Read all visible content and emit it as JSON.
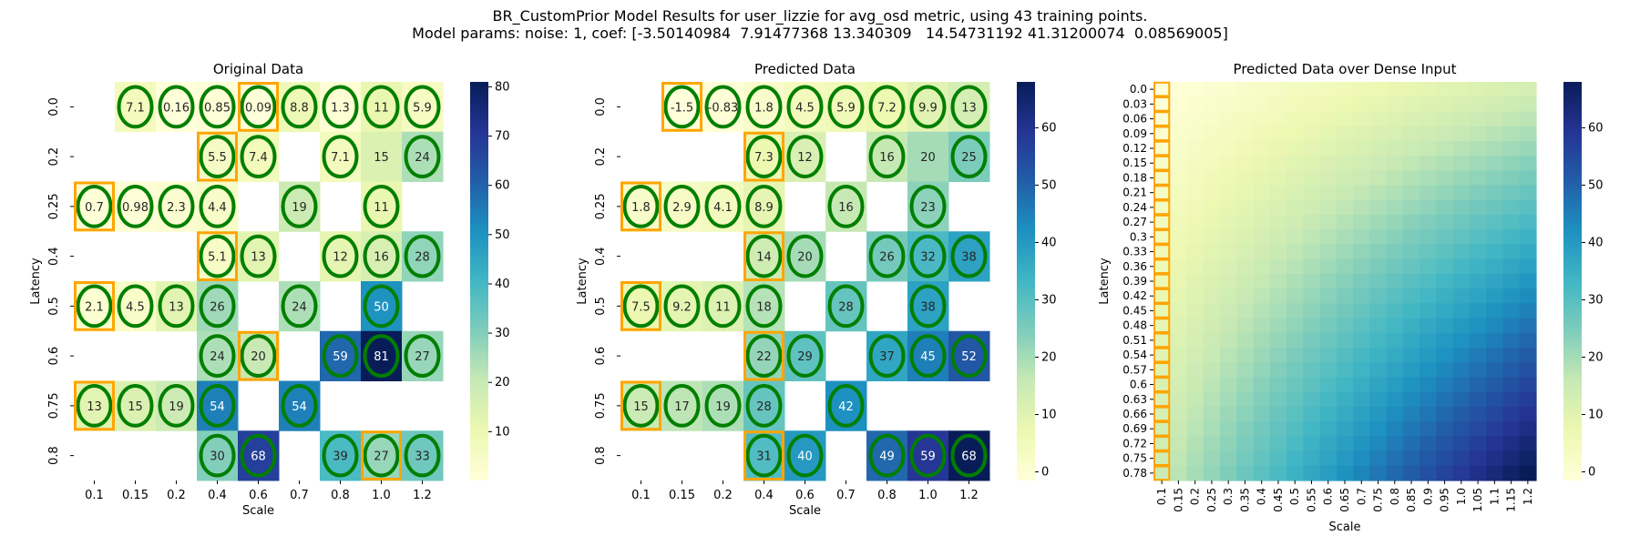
{
  "figure": {
    "title_line1": "BR_CustomPrior Model Results for user_lizzie for avg_osd metric, using 43 training points.",
    "title_line2": "Model params: noise: 1, coef: [-3.50140984  7.91477368 13.340309   14.54731192 41.31200074  0.08569005]"
  },
  "chart_data": [
    {
      "type": "heatmap",
      "title": "Original Data",
      "xlabel": "Scale",
      "ylabel": "Latency",
      "x_categories": [
        "0.1",
        "0.15",
        "0.2",
        "0.4",
        "0.6",
        "0.7",
        "0.8",
        "1.0",
        "1.2"
      ],
      "y_categories": [
        "0.0",
        "0.2",
        "0.25",
        "0.4",
        "0.5",
        "0.6",
        "0.75",
        "0.8"
      ],
      "cell_labels": [
        [
          null,
          "7.1",
          "0.16",
          "0.85",
          "0.09",
          "8.8",
          "1.3",
          "11",
          "5.9"
        ],
        [
          null,
          null,
          null,
          "5.5",
          "7.4",
          null,
          "7.1",
          "15",
          "24"
        ],
        [
          "0.7",
          "0.98",
          "2.3",
          "4.4",
          null,
          "19",
          null,
          "11",
          null
        ],
        [
          null,
          null,
          null,
          "5.1",
          "13",
          null,
          "12",
          "16",
          "28"
        ],
        [
          "2.1",
          "4.5",
          "13",
          "26",
          null,
          "24",
          null,
          "50",
          null
        ],
        [
          null,
          null,
          null,
          "24",
          "20",
          null,
          "59",
          "81",
          "27"
        ],
        [
          "13",
          "15",
          "19",
          "54",
          null,
          "54",
          null,
          null,
          null
        ],
        [
          null,
          null,
          null,
          "30",
          "68",
          null,
          "39",
          "27",
          "33"
        ]
      ],
      "values": [
        [
          null,
          7.1,
          0.16,
          0.85,
          0.09,
          8.8,
          1.3,
          11,
          5.9
        ],
        [
          null,
          null,
          null,
          5.5,
          7.4,
          null,
          7.1,
          15,
          24
        ],
        [
          0.7,
          0.98,
          2.3,
          4.4,
          null,
          19,
          null,
          11,
          null
        ],
        [
          null,
          null,
          null,
          5.1,
          13,
          null,
          12,
          16,
          28
        ],
        [
          2.1,
          4.5,
          13,
          26,
          null,
          24,
          null,
          50,
          null
        ],
        [
          null,
          null,
          null,
          24,
          20,
          null,
          59,
          81,
          27
        ],
        [
          13,
          15,
          19,
          54,
          null,
          54,
          null,
          null,
          null
        ],
        [
          null,
          null,
          null,
          30,
          68,
          null,
          39,
          27,
          33
        ]
      ],
      "green_circles": [
        [
          false,
          true,
          true,
          true,
          true,
          true,
          true,
          true,
          true
        ],
        [
          false,
          false,
          false,
          true,
          true,
          false,
          true,
          false,
          true
        ],
        [
          true,
          true,
          true,
          true,
          false,
          true,
          false,
          true,
          false
        ],
        [
          false,
          false,
          false,
          true,
          true,
          false,
          true,
          true,
          true
        ],
        [
          true,
          true,
          true,
          true,
          false,
          true,
          false,
          true,
          false
        ],
        [
          false,
          false,
          false,
          true,
          true,
          false,
          true,
          true,
          true
        ],
        [
          true,
          true,
          true,
          true,
          false,
          true,
          false,
          false,
          false
        ],
        [
          false,
          false,
          false,
          true,
          true,
          false,
          true,
          true,
          true
        ]
      ],
      "orange_boxes": [
        [
          0,
          4
        ],
        [
          1,
          3
        ],
        [
          2,
          0
        ],
        [
          3,
          3
        ],
        [
          4,
          0
        ],
        [
          5,
          4
        ],
        [
          6,
          0
        ],
        [
          7,
          7
        ]
      ],
      "colorbar": {
        "min": 0.09,
        "max": 81,
        "ticks": [
          10,
          20,
          30,
          40,
          50,
          60,
          70,
          80
        ]
      }
    },
    {
      "type": "heatmap",
      "title": "Predicted Data",
      "xlabel": "Scale",
      "ylabel": "Latency",
      "x_categories": [
        "0.1",
        "0.15",
        "0.2",
        "0.4",
        "0.6",
        "0.7",
        "0.8",
        "1.0",
        "1.2"
      ],
      "y_categories": [
        "0.0",
        "0.2",
        "0.25",
        "0.4",
        "0.5",
        "0.6",
        "0.75",
        "0.8"
      ],
      "cell_labels": [
        [
          null,
          "-1.5",
          "-0.83",
          "1.8",
          "4.5",
          "5.9",
          "7.2",
          "9.9",
          "13"
        ],
        [
          null,
          null,
          null,
          "7.3",
          "12",
          null,
          "16",
          "20",
          "25"
        ],
        [
          "1.8",
          "2.9",
          "4.1",
          "8.9",
          null,
          "16",
          null,
          "23",
          null
        ],
        [
          null,
          null,
          null,
          "14",
          "20",
          null,
          "26",
          "32",
          "38"
        ],
        [
          "7.5",
          "9.2",
          "11",
          "18",
          null,
          "28",
          null,
          "38",
          null
        ],
        [
          null,
          null,
          null,
          "22",
          "29",
          null,
          "37",
          "45",
          "52"
        ],
        [
          "15",
          "17",
          "19",
          "28",
          null,
          "42",
          null,
          null,
          null
        ],
        [
          null,
          null,
          null,
          "31",
          "40",
          null,
          "49",
          "59",
          "68"
        ]
      ],
      "values": [
        [
          null,
          -1.5,
          -0.83,
          1.8,
          4.5,
          5.9,
          7.2,
          9.9,
          13
        ],
        [
          null,
          null,
          null,
          7.3,
          12,
          null,
          16,
          20,
          25
        ],
        [
          1.8,
          2.9,
          4.1,
          8.9,
          null,
          16,
          null,
          23,
          null
        ],
        [
          null,
          null,
          null,
          14,
          20,
          null,
          26,
          32,
          38
        ],
        [
          7.5,
          9.2,
          11,
          18,
          null,
          28,
          null,
          38,
          null
        ],
        [
          null,
          null,
          null,
          22,
          29,
          null,
          37,
          45,
          52
        ],
        [
          15,
          17,
          19,
          28,
          null,
          42,
          null,
          null,
          null
        ],
        [
          null,
          null,
          null,
          31,
          40,
          null,
          49,
          59,
          68
        ]
      ],
      "green_circles": [
        [
          false,
          true,
          true,
          true,
          true,
          true,
          true,
          true,
          true
        ],
        [
          false,
          false,
          false,
          true,
          true,
          false,
          true,
          false,
          true
        ],
        [
          true,
          true,
          true,
          true,
          false,
          true,
          false,
          true,
          false
        ],
        [
          false,
          false,
          false,
          true,
          true,
          false,
          true,
          true,
          true
        ],
        [
          true,
          true,
          true,
          true,
          false,
          true,
          false,
          true,
          false
        ],
        [
          false,
          false,
          false,
          true,
          true,
          false,
          true,
          true,
          true
        ],
        [
          true,
          true,
          true,
          true,
          false,
          true,
          false,
          false,
          false
        ],
        [
          false,
          false,
          false,
          true,
          true,
          false,
          true,
          true,
          true
        ]
      ],
      "orange_boxes": [
        [
          0,
          1
        ],
        [
          1,
          3
        ],
        [
          2,
          0
        ],
        [
          3,
          3
        ],
        [
          4,
          0
        ],
        [
          5,
          3
        ],
        [
          6,
          0
        ],
        [
          7,
          3
        ]
      ],
      "colorbar": {
        "min": -1.5,
        "max": 68,
        "ticks": [
          0,
          10,
          20,
          30,
          40,
          50,
          60
        ]
      }
    },
    {
      "type": "heatmap",
      "title": "Predicted Data over Dense Input",
      "xlabel": "Scale",
      "ylabel": "Latency",
      "x_categories": [
        "0.1",
        "0.15",
        "0.2",
        "0.25",
        "0.3",
        "0.35",
        "0.4",
        "0.45",
        "0.5",
        "0.55",
        "0.6",
        "0.65",
        "0.7",
        "0.75",
        "0.8",
        "0.85",
        "0.9",
        "0.95",
        "1.0",
        "1.05",
        "1.1",
        "1.15",
        "1.2"
      ],
      "y_categories": [
        "0.0",
        "0.03",
        "0.06",
        "0.09",
        "0.12",
        "0.15",
        "0.18",
        "0.21",
        "0.24",
        "0.27",
        "0.3",
        "0.33",
        "0.36",
        "0.39",
        "0.42",
        "0.45",
        "0.48",
        "0.51",
        "0.54",
        "0.57",
        "0.6",
        "0.63",
        "0.66",
        "0.69",
        "0.72",
        "0.75",
        "0.78"
      ],
      "value_corners": {
        "top_left": -1.5,
        "top_right": 13,
        "bottom_left": 15,
        "bottom_right": 68
      },
      "orange_column": "0.1",
      "colorbar": {
        "min": -1.5,
        "max": 68,
        "ticks": [
          0,
          10,
          20,
          30,
          40,
          50,
          60
        ]
      }
    }
  ],
  "colors": {
    "colormap": [
      "#ffffd9",
      "#edf8b1",
      "#c7e9b4",
      "#7fcdbb",
      "#41b6c4",
      "#1d91c0",
      "#225ea8",
      "#253494",
      "#081d58"
    ],
    "circle": "#007f00",
    "box": "#ffa500"
  }
}
